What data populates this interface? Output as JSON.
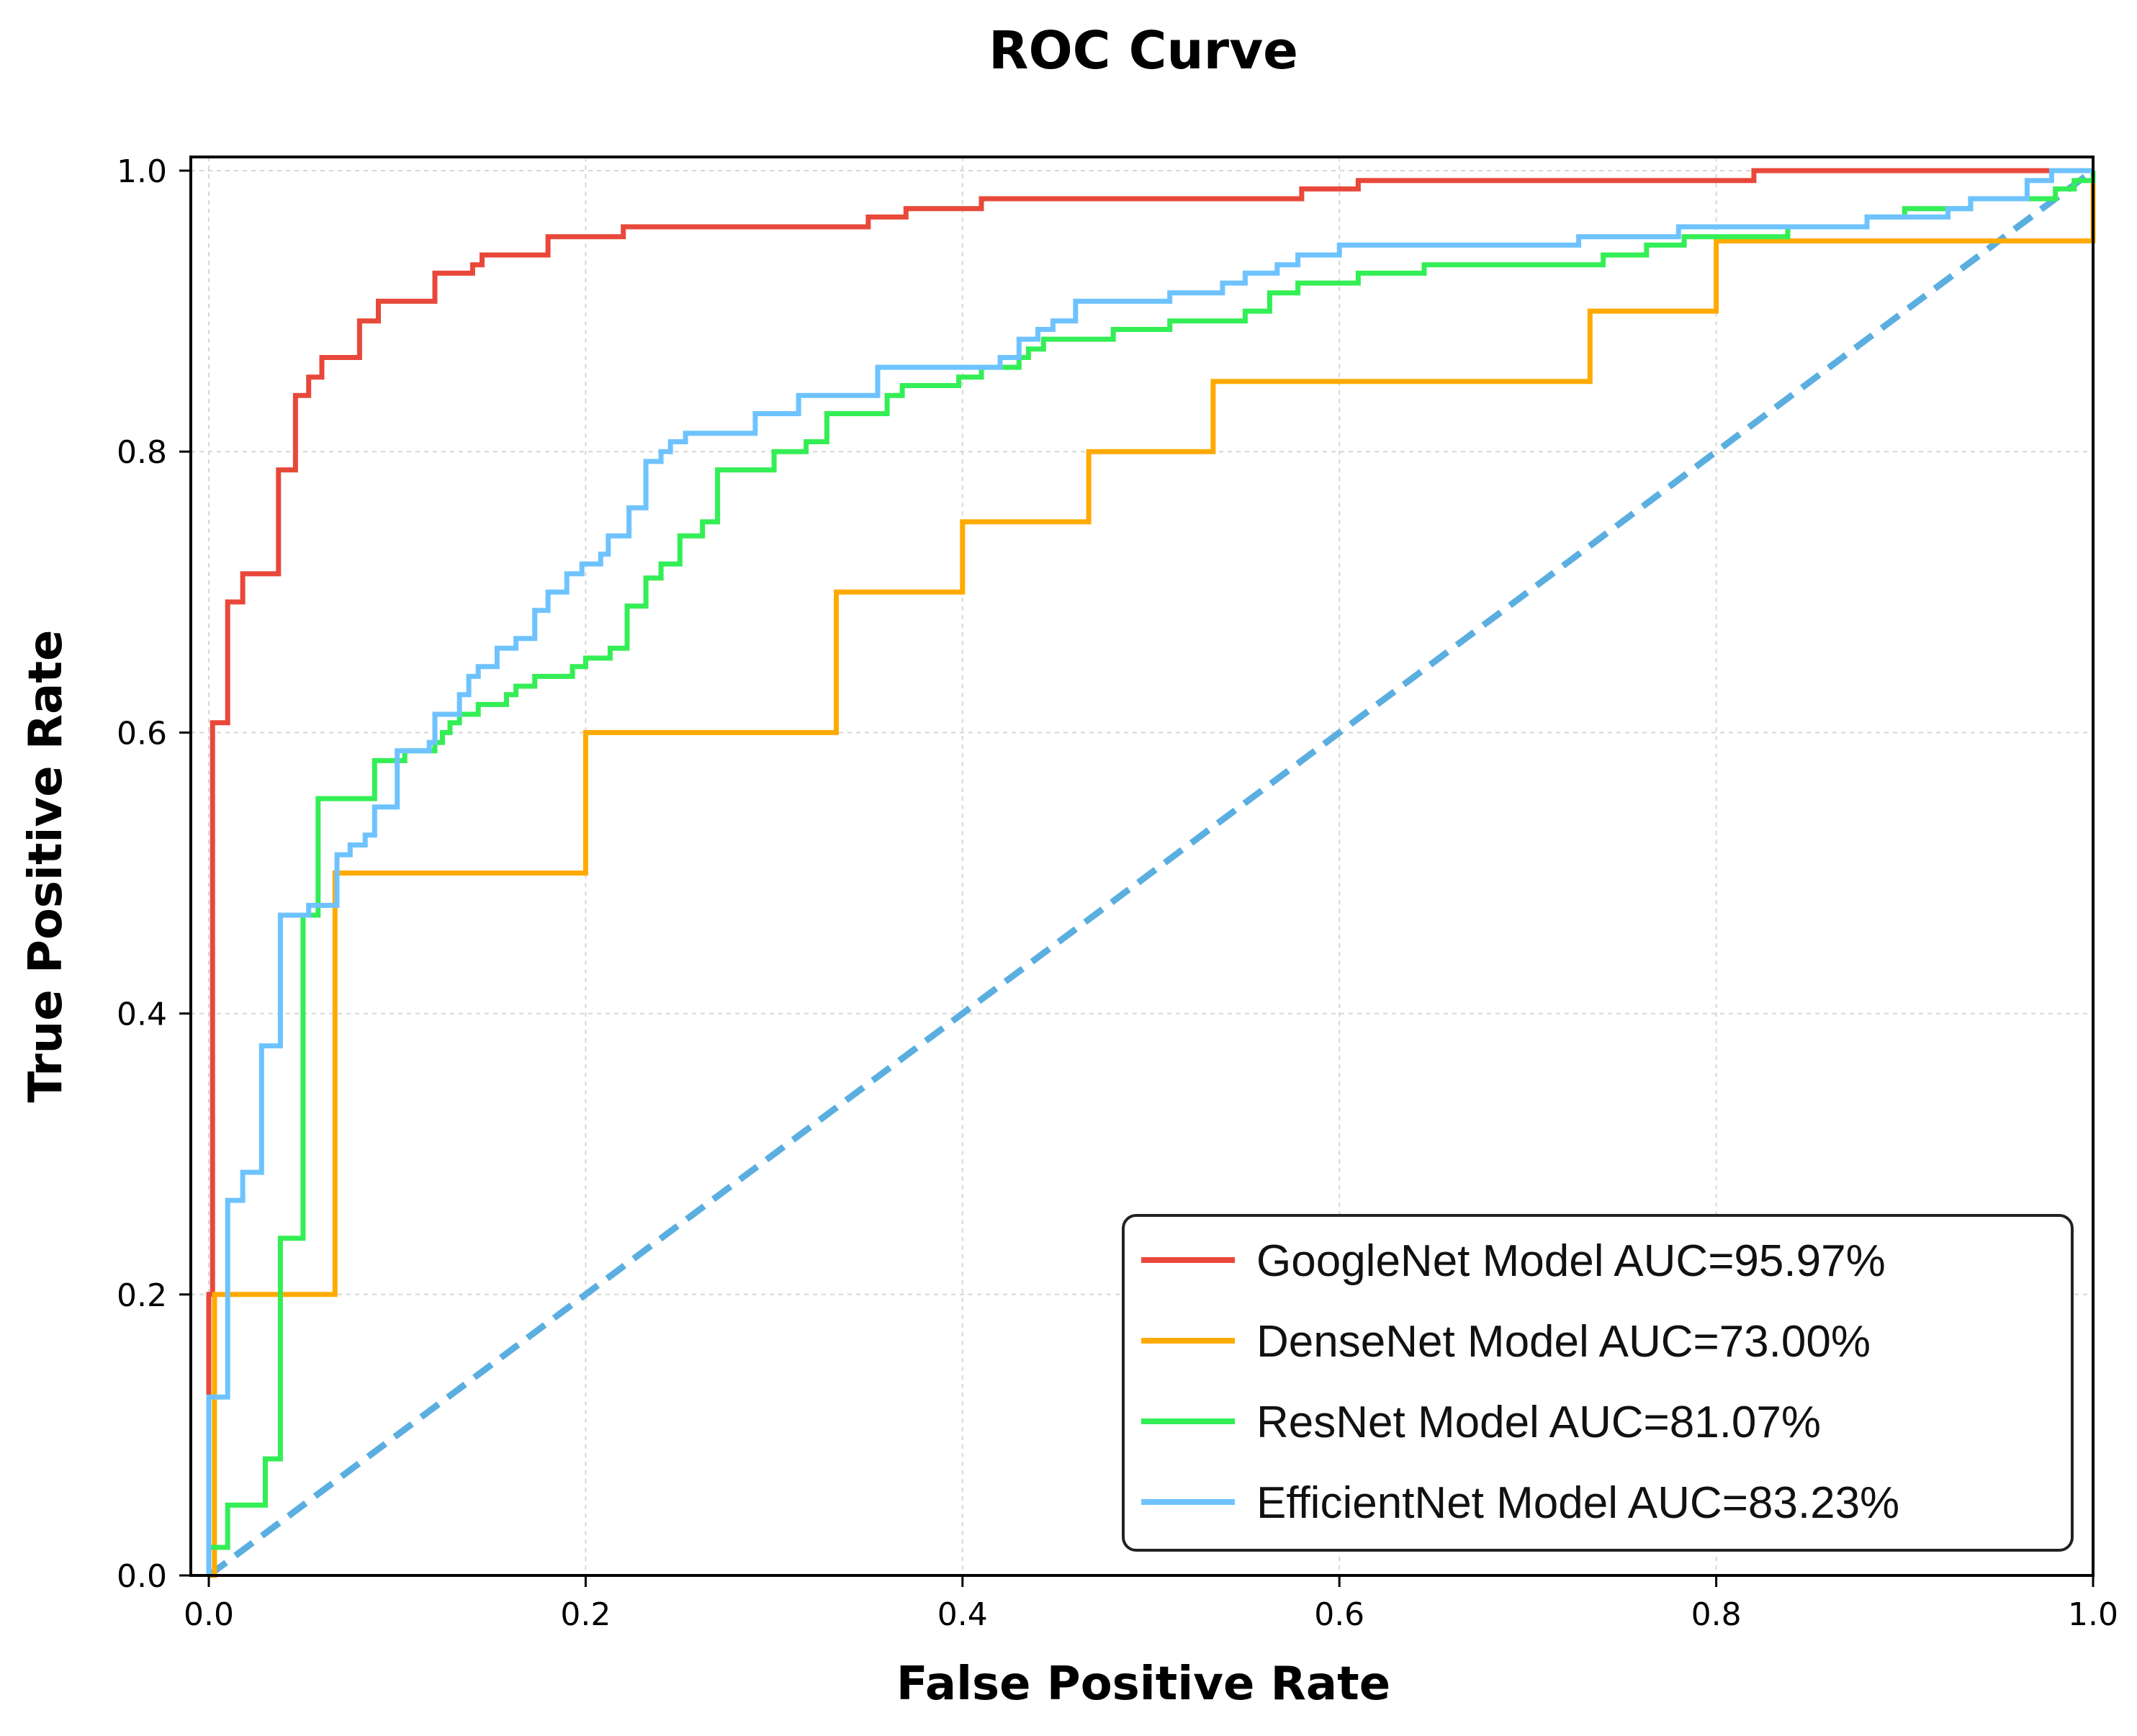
{
  "chart_data": {
    "type": "line",
    "title": "ROC Curve",
    "xlabel": "False Positive Rate",
    "ylabel": "True Positive Rate",
    "xlim": [
      0,
      1
    ],
    "ylim": [
      0,
      1
    ],
    "xticks": [
      "0.0",
      "0.2",
      "0.4",
      "0.6",
      "0.8",
      "1.0"
    ],
    "yticks": [
      "0.0",
      "0.2",
      "0.4",
      "0.6",
      "0.8",
      "1.0"
    ],
    "grid": true,
    "legend_position": "bottom-right",
    "series": [
      {
        "name": "GoogleNet Model AUC=95.97%",
        "color": "#e8483a",
        "points": [
          [
            0,
            0
          ],
          [
            0,
            0.2
          ],
          [
            0.002,
            0.2
          ],
          [
            0.002,
            0.607
          ],
          [
            0.01,
            0.607
          ],
          [
            0.01,
            0.693
          ],
          [
            0.018,
            0.693
          ],
          [
            0.018,
            0.713
          ],
          [
            0.037,
            0.713
          ],
          [
            0.037,
            0.787
          ],
          [
            0.046,
            0.787
          ],
          [
            0.046,
            0.84
          ],
          [
            0.053,
            0.84
          ],
          [
            0.053,
            0.853
          ],
          [
            0.06,
            0.853
          ],
          [
            0.06,
            0.867
          ],
          [
            0.08,
            0.867
          ],
          [
            0.08,
            0.893
          ],
          [
            0.09,
            0.893
          ],
          [
            0.09,
            0.907
          ],
          [
            0.12,
            0.907
          ],
          [
            0.12,
            0.927
          ],
          [
            0.14,
            0.927
          ],
          [
            0.14,
            0.933
          ],
          [
            0.145,
            0.933
          ],
          [
            0.145,
            0.94
          ],
          [
            0.18,
            0.94
          ],
          [
            0.18,
            0.953
          ],
          [
            0.22,
            0.953
          ],
          [
            0.22,
            0.96
          ],
          [
            0.35,
            0.96
          ],
          [
            0.35,
            0.967
          ],
          [
            0.37,
            0.967
          ],
          [
            0.37,
            0.973
          ],
          [
            0.41,
            0.973
          ],
          [
            0.41,
            0.98
          ],
          [
            0.58,
            0.98
          ],
          [
            0.58,
            0.987
          ],
          [
            0.61,
            0.987
          ],
          [
            0.61,
            0.993
          ],
          [
            0.82,
            0.993
          ],
          [
            0.82,
            1.0
          ],
          [
            1.0,
            1.0
          ]
        ]
      },
      {
        "name": "DenseNet Model AUC=73.00%",
        "color": "#ffaa00",
        "points": [
          [
            0,
            0
          ],
          [
            0.003,
            0
          ],
          [
            0.003,
            0.2
          ],
          [
            0.067,
            0.2
          ],
          [
            0.067,
            0.5
          ],
          [
            0.2,
            0.5
          ],
          [
            0.2,
            0.6
          ],
          [
            0.333,
            0.6
          ],
          [
            0.333,
            0.7
          ],
          [
            0.4,
            0.7
          ],
          [
            0.4,
            0.75
          ],
          [
            0.467,
            0.75
          ],
          [
            0.467,
            0.8
          ],
          [
            0.533,
            0.8
          ],
          [
            0.533,
            0.85
          ],
          [
            0.733,
            0.85
          ],
          [
            0.733,
            0.9
          ],
          [
            0.8,
            0.9
          ],
          [
            0.8,
            0.95
          ],
          [
            1.0,
            0.95
          ],
          [
            1.0,
            1.0
          ]
        ]
      },
      {
        "name": "ResNet Model AUC=81.07%",
        "color": "#33ee55",
        "points": [
          [
            0,
            0
          ],
          [
            0,
            0.02
          ],
          [
            0.01,
            0.02
          ],
          [
            0.01,
            0.05
          ],
          [
            0.03,
            0.05
          ],
          [
            0.03,
            0.083
          ],
          [
            0.038,
            0.083
          ],
          [
            0.038,
            0.24
          ],
          [
            0.05,
            0.24
          ],
          [
            0.05,
            0.47
          ],
          [
            0.058,
            0.47
          ],
          [
            0.058,
            0.553
          ],
          [
            0.088,
            0.553
          ],
          [
            0.088,
            0.58
          ],
          [
            0.104,
            0.58
          ],
          [
            0.104,
            0.587
          ],
          [
            0.12,
            0.587
          ],
          [
            0.12,
            0.593
          ],
          [
            0.124,
            0.593
          ],
          [
            0.124,
            0.6
          ],
          [
            0.128,
            0.6
          ],
          [
            0.128,
            0.607
          ],
          [
            0.133,
            0.607
          ],
          [
            0.133,
            0.613
          ],
          [
            0.143,
            0.613
          ],
          [
            0.143,
            0.62
          ],
          [
            0.158,
            0.62
          ],
          [
            0.158,
            0.627
          ],
          [
            0.163,
            0.627
          ],
          [
            0.163,
            0.633
          ],
          [
            0.173,
            0.633
          ],
          [
            0.173,
            0.64
          ],
          [
            0.193,
            0.64
          ],
          [
            0.193,
            0.647
          ],
          [
            0.2,
            0.647
          ],
          [
            0.2,
            0.653
          ],
          [
            0.213,
            0.653
          ],
          [
            0.213,
            0.66
          ],
          [
            0.222,
            0.66
          ],
          [
            0.222,
            0.69
          ],
          [
            0.232,
            0.69
          ],
          [
            0.232,
            0.71
          ],
          [
            0.24,
            0.71
          ],
          [
            0.24,
            0.72
          ],
          [
            0.25,
            0.72
          ],
          [
            0.25,
            0.74
          ],
          [
            0.262,
            0.74
          ],
          [
            0.262,
            0.75
          ],
          [
            0.27,
            0.75
          ],
          [
            0.27,
            0.787
          ],
          [
            0.3,
            0.787
          ],
          [
            0.3,
            0.8
          ],
          [
            0.317,
            0.8
          ],
          [
            0.317,
            0.807
          ],
          [
            0.328,
            0.807
          ],
          [
            0.328,
            0.827
          ],
          [
            0.36,
            0.827
          ],
          [
            0.36,
            0.84
          ],
          [
            0.368,
            0.84
          ],
          [
            0.368,
            0.847
          ],
          [
            0.398,
            0.847
          ],
          [
            0.398,
            0.853
          ],
          [
            0.41,
            0.853
          ],
          [
            0.41,
            0.86
          ],
          [
            0.43,
            0.86
          ],
          [
            0.43,
            0.867
          ],
          [
            0.435,
            0.867
          ],
          [
            0.435,
            0.873
          ],
          [
            0.443,
            0.873
          ],
          [
            0.443,
            0.88
          ],
          [
            0.48,
            0.88
          ],
          [
            0.48,
            0.887
          ],
          [
            0.51,
            0.887
          ],
          [
            0.51,
            0.893
          ],
          [
            0.55,
            0.893
          ],
          [
            0.55,
            0.9
          ],
          [
            0.563,
            0.9
          ],
          [
            0.563,
            0.913
          ],
          [
            0.578,
            0.913
          ],
          [
            0.578,
            0.92
          ],
          [
            0.61,
            0.92
          ],
          [
            0.61,
            0.927
          ],
          [
            0.645,
            0.927
          ],
          [
            0.645,
            0.933
          ],
          [
            0.74,
            0.933
          ],
          [
            0.74,
            0.94
          ],
          [
            0.763,
            0.94
          ],
          [
            0.763,
            0.947
          ],
          [
            0.783,
            0.947
          ],
          [
            0.783,
            0.953
          ],
          [
            0.838,
            0.953
          ],
          [
            0.838,
            0.96
          ],
          [
            0.88,
            0.96
          ],
          [
            0.88,
            0.967
          ],
          [
            0.9,
            0.967
          ],
          [
            0.9,
            0.973
          ],
          [
            0.935,
            0.973
          ],
          [
            0.935,
            0.98
          ],
          [
            0.98,
            0.98
          ],
          [
            0.98,
            0.987
          ],
          [
            0.99,
            0.987
          ],
          [
            0.99,
            0.993
          ],
          [
            1.0,
            0.993
          ],
          [
            1.0,
            1.0
          ]
        ]
      },
      {
        "name": "EfficientNet Model AUC=83.23%",
        "color": "#6ec3ff",
        "points": [
          [
            0,
            0
          ],
          [
            0,
            0.127
          ],
          [
            0.01,
            0.127
          ],
          [
            0.01,
            0.267
          ],
          [
            0.018,
            0.267
          ],
          [
            0.018,
            0.287
          ],
          [
            0.028,
            0.287
          ],
          [
            0.028,
            0.377
          ],
          [
            0.038,
            0.377
          ],
          [
            0.038,
            0.47
          ],
          [
            0.053,
            0.47
          ],
          [
            0.053,
            0.477
          ],
          [
            0.068,
            0.477
          ],
          [
            0.068,
            0.513
          ],
          [
            0.075,
            0.513
          ],
          [
            0.075,
            0.52
          ],
          [
            0.083,
            0.52
          ],
          [
            0.083,
            0.527
          ],
          [
            0.088,
            0.527
          ],
          [
            0.088,
            0.547
          ],
          [
            0.1,
            0.547
          ],
          [
            0.1,
            0.587
          ],
          [
            0.117,
            0.587
          ],
          [
            0.117,
            0.593
          ],
          [
            0.12,
            0.593
          ],
          [
            0.12,
            0.613
          ],
          [
            0.133,
            0.613
          ],
          [
            0.133,
            0.627
          ],
          [
            0.138,
            0.627
          ],
          [
            0.138,
            0.64
          ],
          [
            0.143,
            0.64
          ],
          [
            0.143,
            0.647
          ],
          [
            0.153,
            0.647
          ],
          [
            0.153,
            0.66
          ],
          [
            0.163,
            0.66
          ],
          [
            0.163,
            0.667
          ],
          [
            0.173,
            0.667
          ],
          [
            0.173,
            0.687
          ],
          [
            0.18,
            0.687
          ],
          [
            0.18,
            0.7
          ],
          [
            0.19,
            0.7
          ],
          [
            0.19,
            0.713
          ],
          [
            0.198,
            0.713
          ],
          [
            0.198,
            0.72
          ],
          [
            0.208,
            0.72
          ],
          [
            0.208,
            0.727
          ],
          [
            0.212,
            0.727
          ],
          [
            0.212,
            0.74
          ],
          [
            0.223,
            0.74
          ],
          [
            0.223,
            0.76
          ],
          [
            0.232,
            0.76
          ],
          [
            0.232,
            0.793
          ],
          [
            0.24,
            0.793
          ],
          [
            0.24,
            0.8
          ],
          [
            0.245,
            0.8
          ],
          [
            0.245,
            0.807
          ],
          [
            0.253,
            0.807
          ],
          [
            0.253,
            0.813
          ],
          [
            0.29,
            0.813
          ],
          [
            0.29,
            0.827
          ],
          [
            0.313,
            0.827
          ],
          [
            0.313,
            0.84
          ],
          [
            0.355,
            0.84
          ],
          [
            0.355,
            0.86
          ],
          [
            0.42,
            0.86
          ],
          [
            0.42,
            0.867
          ],
          [
            0.43,
            0.867
          ],
          [
            0.43,
            0.88
          ],
          [
            0.44,
            0.88
          ],
          [
            0.44,
            0.887
          ],
          [
            0.448,
            0.887
          ],
          [
            0.448,
            0.893
          ],
          [
            0.46,
            0.893
          ],
          [
            0.46,
            0.907
          ],
          [
            0.51,
            0.907
          ],
          [
            0.51,
            0.913
          ],
          [
            0.538,
            0.913
          ],
          [
            0.538,
            0.92
          ],
          [
            0.55,
            0.92
          ],
          [
            0.55,
            0.927
          ],
          [
            0.567,
            0.927
          ],
          [
            0.567,
            0.933
          ],
          [
            0.578,
            0.933
          ],
          [
            0.578,
            0.94
          ],
          [
            0.6,
            0.94
          ],
          [
            0.6,
            0.947
          ],
          [
            0.727,
            0.947
          ],
          [
            0.727,
            0.953
          ],
          [
            0.78,
            0.953
          ],
          [
            0.78,
            0.96
          ],
          [
            0.88,
            0.96
          ],
          [
            0.88,
            0.967
          ],
          [
            0.923,
            0.967
          ],
          [
            0.923,
            0.973
          ],
          [
            0.935,
            0.973
          ],
          [
            0.935,
            0.98
          ],
          [
            0.965,
            0.98
          ],
          [
            0.965,
            0.993
          ],
          [
            0.978,
            0.993
          ],
          [
            0.978,
            1.0
          ],
          [
            1.0,
            1.0
          ]
        ]
      },
      {
        "name": "Chance",
        "color": "#5aaee0",
        "dashed": true,
        "show_in_legend": false,
        "points": [
          [
            0,
            0
          ],
          [
            1,
            1
          ]
        ]
      }
    ]
  }
}
